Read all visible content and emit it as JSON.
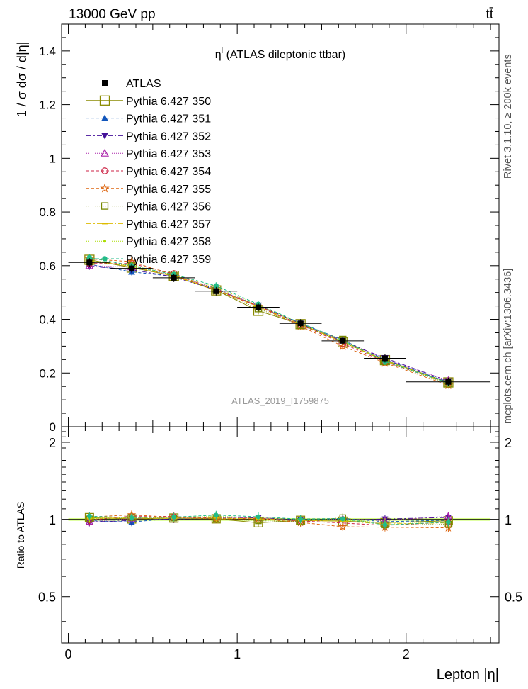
{
  "header": {
    "energy_label": "13000 GeV pp",
    "process_label": "tt̄"
  },
  "side_labels": {
    "rivet": "Rivet 3.1.10, ≥ 200k events",
    "mcplots": "mcplots.cern.ch [arXiv:1306.3436]"
  },
  "chart_data": {
    "type": "line",
    "title": "η^l (ATLAS dileptonic ttbar)",
    "title_main": "η",
    "title_sup": "l",
    "title_rest": " (ATLAS dileptonic ttbar)",
    "watermark": "ATLAS_2019_I1759875",
    "xlabel": "Lepton |η|",
    "ylabel": "1 / σ  dσ / d|η|",
    "ratio_ylabel": "Ratio to ATLAS",
    "xlim": [
      -0.04,
      2.55
    ],
    "ylim": [
      0,
      1.5
    ],
    "ratio_ylim": [
      0.33,
      2.3
    ],
    "grid": false,
    "legend_position": "top-left",
    "x_ticks": [
      "0",
      "1",
      "2"
    ],
    "y_ticks": [
      "0",
      "0.2",
      "0.4",
      "0.6",
      "0.8",
      "1",
      "1.2",
      "1.4"
    ],
    "ratio_y_ticks": [
      "0.5",
      "1",
      "2"
    ],
    "x": [
      0.125,
      0.375,
      0.625,
      0.875,
      1.125,
      1.375,
      1.625,
      1.875,
      2.25
    ],
    "x_err": [
      0.125,
      0.125,
      0.125,
      0.125,
      0.125,
      0.125,
      0.125,
      0.125,
      0.25
    ],
    "data": {
      "name": "ATLAS",
      "values": [
        0.612,
        0.59,
        0.555,
        0.505,
        0.445,
        0.385,
        0.32,
        0.255,
        0.167
      ]
    },
    "series": [
      {
        "name": "Pythia 6.427 350",
        "color": "#8a8a00",
        "marker": "open-square-big",
        "dash": "",
        "values": [
          0.622,
          0.593,
          0.562,
          0.508,
          0.432,
          0.382,
          0.315,
          0.248,
          0.165
        ]
      },
      {
        "name": "Pythia 6.427 351",
        "color": "#1155bb",
        "marker": "filled-triangle-up",
        "dash": "4,3",
        "values": [
          0.605,
          0.577,
          0.56,
          0.513,
          0.448,
          0.386,
          0.323,
          0.25,
          0.166
        ]
      },
      {
        "name": "Pythia 6.427 352",
        "color": "#441199",
        "marker": "filled-triangle-down",
        "dash": "7,3,2,3",
        "values": [
          0.598,
          0.585,
          0.558,
          0.51,
          0.452,
          0.384,
          0.318,
          0.256,
          0.17
        ]
      },
      {
        "name": "Pythia 6.427 353",
        "color": "#aa22aa",
        "marker": "open-triangle-up",
        "dash": "1,2",
        "values": [
          0.6,
          0.595,
          0.565,
          0.515,
          0.45,
          0.378,
          0.322,
          0.252,
          0.172
        ]
      },
      {
        "name": "Pythia 6.427 354",
        "color": "#cc2244",
        "marker": "open-circle",
        "dash": "4,3",
        "values": [
          0.608,
          0.608,
          0.57,
          0.51,
          0.45,
          0.38,
          0.31,
          0.242,
          0.163
        ]
      },
      {
        "name": "Pythia 6.427 355",
        "color": "#dd6611",
        "marker": "open-star",
        "dash": "4,3",
        "values": [
          0.625,
          0.615,
          0.565,
          0.507,
          0.448,
          0.375,
          0.3,
          0.238,
          0.155
        ]
      },
      {
        "name": "Pythia 6.427 356",
        "color": "#778800",
        "marker": "open-square-small",
        "dash": "1,2",
        "values": [
          0.615,
          0.6,
          0.562,
          0.508,
          0.44,
          0.378,
          0.325,
          0.243,
          0.16
        ]
      },
      {
        "name": "Pythia 6.427 357",
        "color": "#ddbb00",
        "marker": "dash-dot",
        "dash": "7,3,2,3",
        "values": [
          0.618,
          0.598,
          0.56,
          0.512,
          0.447,
          0.382,
          0.315,
          0.245,
          0.162
        ]
      },
      {
        "name": "Pythia 6.427 358",
        "color": "#aadd00",
        "marker": "small-dot",
        "dash": "1,2",
        "values": [
          0.62,
          0.602,
          0.565,
          0.52,
          0.452,
          0.385,
          0.318,
          0.248,
          0.163
        ]
      },
      {
        "name": "Pythia 6.427 359",
        "color": "#22bb88",
        "marker": "filled-circle",
        "dash": "4,3",
        "values": [
          0.63,
          0.6,
          0.567,
          0.525,
          0.456,
          0.386,
          0.322,
          0.243,
          0.163
        ]
      }
    ]
  }
}
